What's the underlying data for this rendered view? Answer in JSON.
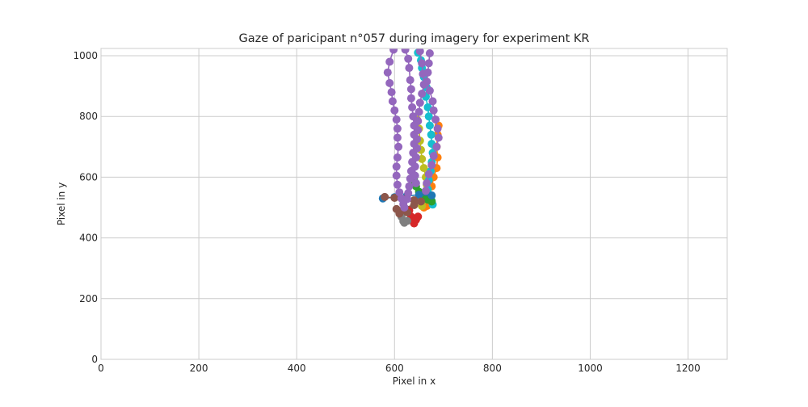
{
  "chart_data": {
    "type": "scatter",
    "title": "Gaze of paricipant n°057 during imagery for experiment KR",
    "xlabel": "Pixel in x",
    "ylabel": "Pixel in y",
    "xlim": [
      0,
      1280
    ],
    "ylim": [
      0,
      1024
    ],
    "xticks": [
      0,
      200,
      400,
      600,
      800,
      1000,
      1200
    ],
    "yticks": [
      0,
      200,
      400,
      600,
      800,
      1000
    ],
    "grid": true,
    "legend": "none",
    "style": "lines with circle markers",
    "series": [
      {
        "color": "#ff7f0e",
        "points": [
          [
            690,
            770
          ],
          [
            688,
            740
          ],
          [
            686,
            700
          ],
          [
            688,
            665
          ],
          [
            686,
            630
          ],
          [
            680,
            600
          ],
          [
            676,
            570
          ],
          [
            672,
            540
          ],
          [
            670,
            520
          ],
          [
            666,
            505
          ],
          [
            660,
            500
          ]
        ]
      },
      {
        "color": "#bcbd22",
        "points": [
          [
            646,
            790
          ],
          [
            650,
            760
          ],
          [
            652,
            720
          ],
          [
            654,
            690
          ],
          [
            656,
            660
          ],
          [
            660,
            630
          ],
          [
            664,
            600
          ],
          [
            666,
            575
          ],
          [
            664,
            550
          ],
          [
            660,
            525
          ],
          [
            656,
            505
          ]
        ]
      },
      {
        "color": "#17becf",
        "points": [
          [
            648,
            1010
          ],
          [
            654,
            985
          ],
          [
            656,
            960
          ],
          [
            660,
            930
          ],
          [
            666,
            895
          ],
          [
            664,
            865
          ],
          [
            668,
            830
          ],
          [
            670,
            800
          ],
          [
            672,
            770
          ],
          [
            675,
            740
          ],
          [
            676,
            710
          ],
          [
            678,
            680
          ],
          [
            676,
            650
          ],
          [
            674,
            620
          ],
          [
            670,
            590
          ],
          [
            668,
            560
          ],
          [
            670,
            540
          ],
          [
            676,
            522
          ],
          [
            678,
            510
          ]
        ]
      },
      {
        "color": "#2ca02c",
        "points": [
          [
            640,
            590
          ],
          [
            644,
            570
          ],
          [
            650,
            552
          ],
          [
            656,
            540
          ],
          [
            662,
            532
          ],
          [
            668,
            526
          ],
          [
            676,
            520
          ]
        ]
      },
      {
        "color": "#1f77b4",
        "points": [
          [
            576,
            530
          ],
          [
            600,
            534
          ],
          [
            625,
            538
          ],
          [
            650,
            542
          ],
          [
            676,
            540
          ]
        ]
      },
      {
        "color": "#d62728",
        "points": [
          [
            630,
            490
          ],
          [
            634,
            470
          ],
          [
            638,
            455
          ],
          [
            640,
            448
          ],
          [
            644,
            460
          ],
          [
            648,
            470
          ]
        ]
      },
      {
        "color": "#7f7f7f",
        "points": [
          [
            614,
            470
          ],
          [
            618,
            455
          ],
          [
            620,
            450
          ],
          [
            626,
            456
          ]
        ]
      },
      {
        "color": "#8c564b",
        "points": [
          [
            580,
            535
          ],
          [
            600,
            532
          ],
          [
            620,
            528
          ],
          [
            640,
            524
          ],
          [
            654,
            520
          ],
          [
            640,
            508
          ],
          [
            620,
            500
          ],
          [
            604,
            495
          ],
          [
            610,
            488
          ],
          [
            626,
            484
          ],
          [
            610,
            480
          ]
        ]
      },
      {
        "color": "#9467bd",
        "points": [
          [
            598,
            1020
          ],
          [
            590,
            980
          ],
          [
            586,
            945
          ],
          [
            590,
            910
          ],
          [
            594,
            880
          ],
          [
            596,
            850
          ],
          [
            600,
            820
          ],
          [
            604,
            790
          ],
          [
            606,
            760
          ],
          [
            606,
            730
          ],
          [
            608,
            700
          ],
          [
            606,
            665
          ],
          [
            604,
            635
          ],
          [
            604,
            605
          ],
          [
            606,
            575
          ],
          [
            610,
            550
          ],
          [
            614,
            530
          ],
          [
            618,
            512
          ],
          [
            620,
            500
          ]
        ]
      },
      {
        "color": "#9467bd",
        "points": [
          [
            622,
            1020
          ],
          [
            628,
            990
          ],
          [
            630,
            960
          ],
          [
            632,
            920
          ],
          [
            634,
            890
          ],
          [
            634,
            860
          ],
          [
            636,
            830
          ],
          [
            638,
            800
          ],
          [
            640,
            770
          ],
          [
            640,
            740
          ],
          [
            640,
            710
          ],
          [
            638,
            680
          ],
          [
            636,
            650
          ],
          [
            634,
            620
          ],
          [
            632,
            595
          ],
          [
            630,
            570
          ],
          [
            628,
            548
          ],
          [
            626,
            528
          ]
        ]
      },
      {
        "color": "#9467bd",
        "points": [
          [
            652,
            1015
          ],
          [
            656,
            975
          ],
          [
            658,
            940
          ],
          [
            660,
            905
          ],
          [
            656,
            875
          ],
          [
            652,
            845
          ],
          [
            650,
            815
          ],
          [
            648,
            785
          ],
          [
            648,
            755
          ],
          [
            646,
            725
          ],
          [
            646,
            695
          ],
          [
            644,
            665
          ],
          [
            642,
            635
          ],
          [
            642,
            605
          ],
          [
            644,
            580
          ]
        ]
      },
      {
        "color": "#9467bd",
        "points": [
          [
            672,
            1008
          ],
          [
            670,
            975
          ],
          [
            668,
            945
          ],
          [
            666,
            915
          ],
          [
            672,
            885
          ],
          [
            678,
            850
          ],
          [
            680,
            820
          ],
          [
            684,
            790
          ],
          [
            688,
            760
          ],
          [
            690,
            730
          ],
          [
            686,
            700
          ],
          [
            680,
            670
          ],
          [
            676,
            640
          ],
          [
            670,
            610
          ],
          [
            666,
            580
          ],
          [
            664,
            555
          ]
        ]
      }
    ]
  }
}
